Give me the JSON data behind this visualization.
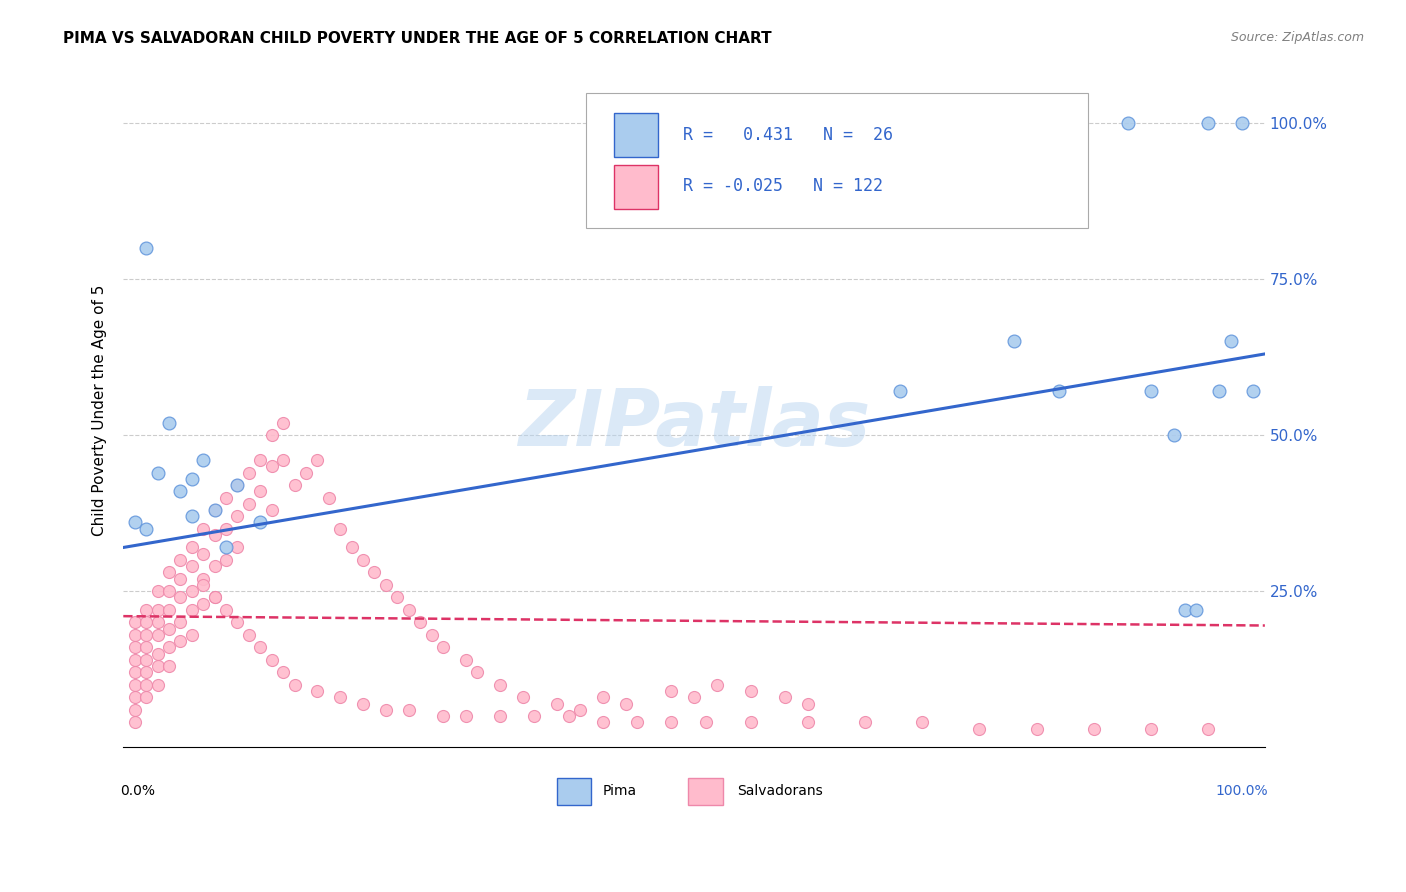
{
  "title": "PIMA VS SALVADORAN CHILD POVERTY UNDER THE AGE OF 5 CORRELATION CHART",
  "source": "Source: ZipAtlas.com",
  "ylabel": "Child Poverty Under the Age of 5",
  "xlim": [
    0.0,
    1.0
  ],
  "ylim": [
    0.0,
    1.08
  ],
  "ytick_vals": [
    0.25,
    0.5,
    0.75,
    1.0
  ],
  "ytick_labels": [
    "25.0%",
    "50.0%",
    "75.0%",
    "100.0%"
  ],
  "watermark": "ZIPatlas",
  "pima_color_edge": "#6699dd",
  "pima_color_fill": "#aaccee",
  "salv_color_edge": "#ee88aa",
  "salv_color_fill": "#ffbbcc",
  "blue_line_color": "#3366cc",
  "pink_line_color": "#dd3366",
  "background_color": "#ffffff",
  "grid_color": "#cccccc",
  "pima_x": [
    0.01,
    0.02,
    0.02,
    0.03,
    0.04,
    0.05,
    0.06,
    0.06,
    0.07,
    0.08,
    0.09,
    0.1,
    0.12,
    0.68,
    0.78,
    0.82,
    0.88,
    0.9,
    0.92,
    0.93,
    0.94,
    0.95,
    0.96,
    0.97,
    0.98,
    0.99
  ],
  "pima_y": [
    0.36,
    0.8,
    0.35,
    0.44,
    0.52,
    0.41,
    0.43,
    0.37,
    0.46,
    0.38,
    0.32,
    0.42,
    0.36,
    0.57,
    0.65,
    0.57,
    1.0,
    0.57,
    0.5,
    0.22,
    0.22,
    1.0,
    0.57,
    0.65,
    1.0,
    0.57
  ],
  "salv_x": [
    0.01,
    0.01,
    0.01,
    0.01,
    0.01,
    0.01,
    0.01,
    0.01,
    0.01,
    0.02,
    0.02,
    0.02,
    0.02,
    0.02,
    0.02,
    0.02,
    0.02,
    0.03,
    0.03,
    0.03,
    0.03,
    0.03,
    0.03,
    0.03,
    0.04,
    0.04,
    0.04,
    0.04,
    0.04,
    0.04,
    0.05,
    0.05,
    0.05,
    0.05,
    0.05,
    0.06,
    0.06,
    0.06,
    0.06,
    0.06,
    0.07,
    0.07,
    0.07,
    0.07,
    0.08,
    0.08,
    0.08,
    0.08,
    0.09,
    0.09,
    0.09,
    0.1,
    0.1,
    0.1,
    0.11,
    0.11,
    0.12,
    0.12,
    0.13,
    0.13,
    0.13,
    0.14,
    0.14,
    0.15,
    0.16,
    0.17,
    0.18,
    0.19,
    0.2,
    0.21,
    0.22,
    0.23,
    0.24,
    0.25,
    0.26,
    0.27,
    0.28,
    0.3,
    0.31,
    0.33,
    0.35,
    0.38,
    0.4,
    0.42,
    0.44,
    0.48,
    0.5,
    0.52,
    0.55,
    0.58,
    0.6,
    0.07,
    0.08,
    0.09,
    0.1,
    0.11,
    0.12,
    0.13,
    0.14,
    0.15,
    0.17,
    0.19,
    0.21,
    0.23,
    0.25,
    0.28,
    0.3,
    0.33,
    0.36,
    0.39,
    0.42,
    0.45,
    0.48,
    0.51,
    0.55,
    0.6,
    0.65,
    0.7,
    0.75,
    0.8,
    0.85,
    0.9,
    0.95
  ],
  "salv_y": [
    0.2,
    0.18,
    0.16,
    0.14,
    0.12,
    0.1,
    0.08,
    0.06,
    0.04,
    0.22,
    0.2,
    0.18,
    0.16,
    0.14,
    0.12,
    0.1,
    0.08,
    0.25,
    0.22,
    0.2,
    0.18,
    0.15,
    0.13,
    0.1,
    0.28,
    0.25,
    0.22,
    0.19,
    0.16,
    0.13,
    0.3,
    0.27,
    0.24,
    0.2,
    0.17,
    0.32,
    0.29,
    0.25,
    0.22,
    0.18,
    0.35,
    0.31,
    0.27,
    0.23,
    0.38,
    0.34,
    0.29,
    0.24,
    0.4,
    0.35,
    0.3,
    0.42,
    0.37,
    0.32,
    0.44,
    0.39,
    0.46,
    0.41,
    0.5,
    0.45,
    0.38,
    0.52,
    0.46,
    0.42,
    0.44,
    0.46,
    0.4,
    0.35,
    0.32,
    0.3,
    0.28,
    0.26,
    0.24,
    0.22,
    0.2,
    0.18,
    0.16,
    0.14,
    0.12,
    0.1,
    0.08,
    0.07,
    0.06,
    0.08,
    0.07,
    0.09,
    0.08,
    0.1,
    0.09,
    0.08,
    0.07,
    0.26,
    0.24,
    0.22,
    0.2,
    0.18,
    0.16,
    0.14,
    0.12,
    0.1,
    0.09,
    0.08,
    0.07,
    0.06,
    0.06,
    0.05,
    0.05,
    0.05,
    0.05,
    0.05,
    0.04,
    0.04,
    0.04,
    0.04,
    0.04,
    0.04,
    0.04,
    0.04,
    0.03,
    0.03,
    0.03,
    0.03,
    0.03
  ],
  "blue_line_x": [
    0.0,
    1.0
  ],
  "blue_line_y": [
    0.32,
    0.63
  ],
  "pink_line_x": [
    0.0,
    1.0
  ],
  "pink_line_y": [
    0.21,
    0.195
  ]
}
